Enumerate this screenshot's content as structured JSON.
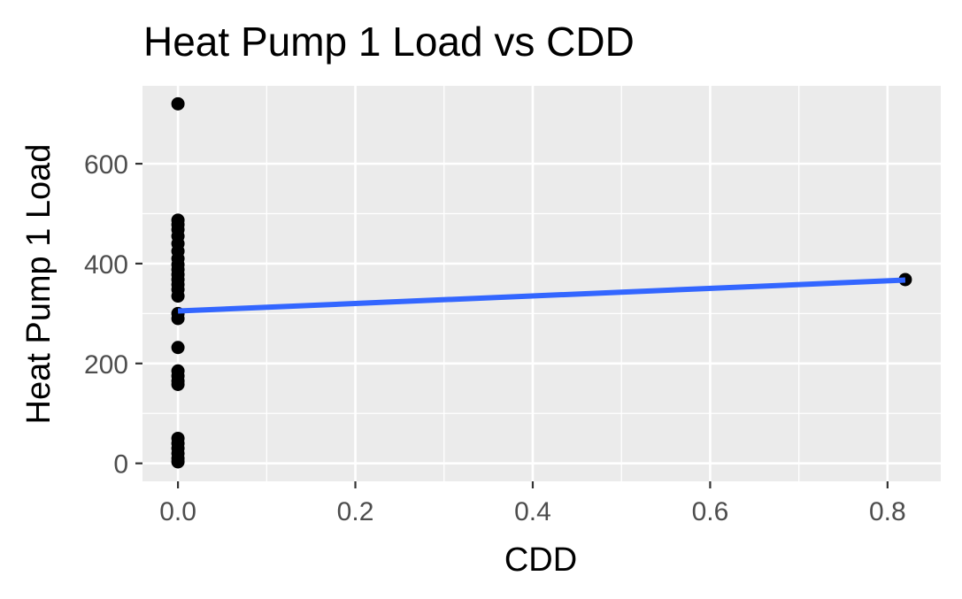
{
  "chart_data": {
    "type": "scatter",
    "title": "Heat Pump 1 Load vs CDD",
    "xlabel": "CDD",
    "ylabel": "Heat Pump 1 Load",
    "xlim": [
      -0.04,
      0.86
    ],
    "ylim": [
      -36,
      756
    ],
    "x_ticks": [
      0.0,
      0.2,
      0.4,
      0.6,
      0.8
    ],
    "x_tick_labels": [
      "0.0",
      "0.2",
      "0.4",
      "0.6",
      "0.8"
    ],
    "y_ticks": [
      0,
      200,
      400,
      600
    ],
    "y_tick_labels": [
      "0",
      "200",
      "400",
      "600"
    ],
    "grid": true,
    "panel_background": "#ebebeb",
    "grid_color": "#ffffff",
    "point_color": "#000000",
    "trend_color": "#3366ff",
    "points": [
      {
        "x": 0,
        "y": 720
      },
      {
        "x": 0,
        "y": 487
      },
      {
        "x": 0,
        "y": 478
      },
      {
        "x": 0,
        "y": 468
      },
      {
        "x": 0,
        "y": 455
      },
      {
        "x": 0,
        "y": 440
      },
      {
        "x": 0,
        "y": 425
      },
      {
        "x": 0,
        "y": 410
      },
      {
        "x": 0,
        "y": 398
      },
      {
        "x": 0,
        "y": 388
      },
      {
        "x": 0,
        "y": 378
      },
      {
        "x": 0,
        "y": 368
      },
      {
        "x": 0,
        "y": 358
      },
      {
        "x": 0,
        "y": 348
      },
      {
        "x": 0,
        "y": 335
      },
      {
        "x": 0,
        "y": 300
      },
      {
        "x": 0,
        "y": 290
      },
      {
        "x": 0,
        "y": 232
      },
      {
        "x": 0,
        "y": 185
      },
      {
        "x": 0,
        "y": 175
      },
      {
        "x": 0,
        "y": 165
      },
      {
        "x": 0,
        "y": 158
      },
      {
        "x": 0,
        "y": 50
      },
      {
        "x": 0,
        "y": 40
      },
      {
        "x": 0,
        "y": 30
      },
      {
        "x": 0,
        "y": 20
      },
      {
        "x": 0,
        "y": 10
      },
      {
        "x": 0,
        "y": 3
      },
      {
        "x": 0.82,
        "y": 368
      }
    ],
    "trend_line": {
      "x": [
        0,
        0.82
      ],
      "y": [
        305,
        367
      ]
    }
  }
}
